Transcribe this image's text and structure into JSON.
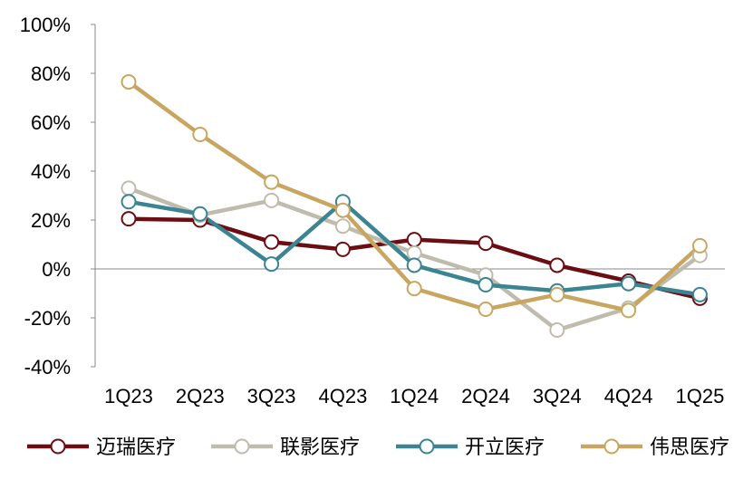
{
  "chart_data": {
    "type": "line",
    "title": "",
    "xlabel": "",
    "ylabel": "",
    "categories": [
      "1Q23",
      "2Q23",
      "3Q23",
      "4Q23",
      "1Q24",
      "2Q24",
      "3Q24",
      "4Q24",
      "1Q25"
    ],
    "ylim": [
      -40,
      100
    ],
    "yticks": [
      -40,
      -20,
      0,
      20,
      40,
      60,
      80,
      100
    ],
    "ytick_labels": [
      "-40%",
      "-20%",
      "0%",
      "20%",
      "40%",
      "60%",
      "80%",
      "100%"
    ],
    "legend_position": "bottom",
    "grid": false,
    "series": [
      {
        "name": "迈瑞医疗",
        "color": "#6b0d12",
        "values": [
          20.5,
          20,
          11,
          8,
          12,
          10.5,
          1.5,
          -5,
          -12
        ]
      },
      {
        "name": "联影医疗",
        "color": "#bfbcae",
        "values": [
          33,
          22,
          28,
          17.5,
          6.5,
          -2.5,
          -25,
          -16,
          5.5
        ]
      },
      {
        "name": "开立医疗",
        "color": "#3b8492",
        "values": [
          27.5,
          22.5,
          2,
          27.5,
          1.5,
          -6.5,
          -9,
          -6,
          -10.5
        ]
      },
      {
        "name": "伟思医疗",
        "color": "#c9a660",
        "values": [
          76.5,
          55,
          35.5,
          24,
          -8,
          -16.5,
          -10.5,
          -17,
          9.5
        ]
      }
    ]
  }
}
